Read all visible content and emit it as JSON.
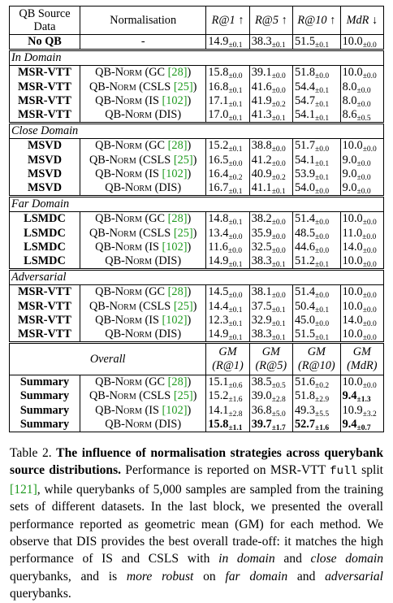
{
  "table": {
    "header": [
      "QB Source Data",
      "Normalisation",
      "R@1 ↑",
      "R@5 ↑",
      "R@10 ↑",
      "MdR ↓"
    ],
    "baseline": {
      "source": "No QB",
      "norm": [
        "-"
      ],
      "cells": [
        {
          "v": "14.9",
          "s": "±0.1"
        },
        {
          "v": "38.3",
          "s": "±0.1"
        },
        {
          "v": "51.5",
          "s": "±0.1"
        },
        {
          "v": "10.0",
          "s": "±0.0"
        }
      ]
    },
    "sections": [
      {
        "label": "In Domain",
        "rows": [
          {
            "source": "MSR-VTT",
            "norm": [
              {
                "sc": "QB-Norm"
              },
              " (GC ",
              {
                "cite": "[28]"
              },
              ")"
            ],
            "cells": [
              {
                "v": "15.8",
                "s": "±0.0"
              },
              {
                "v": "39.1",
                "s": "±0.0"
              },
              {
                "v": "51.8",
                "s": "±0.0"
              },
              {
                "v": "10.0",
                "s": "±0.0"
              }
            ]
          },
          {
            "source": "MSR-VTT",
            "norm": [
              {
                "sc": "QB-Norm"
              },
              " (CSLS ",
              {
                "cite": "[25]"
              },
              ")"
            ],
            "cells": [
              {
                "v": "16.8",
                "s": "±0.1"
              },
              {
                "v": "41.6",
                "s": "±0.0"
              },
              {
                "v": "54.4",
                "s": "±0.1"
              },
              {
                "v": "8.0",
                "s": "±0.0"
              }
            ]
          },
          {
            "source": "MSR-VTT",
            "norm": [
              {
                "sc": "QB-Norm"
              },
              " (IS ",
              {
                "cite": "[102]"
              },
              ")"
            ],
            "cells": [
              {
                "v": "17.1",
                "s": "±0.1"
              },
              {
                "v": "41.9",
                "s": "±0.2"
              },
              {
                "v": "54.7",
                "s": "±0.1"
              },
              {
                "v": "8.0",
                "s": "±0.0"
              }
            ]
          },
          {
            "source": "MSR-VTT",
            "norm": [
              {
                "sc": "QB-Norm"
              },
              " (DIS)"
            ],
            "cells": [
              {
                "v": "17.0",
                "s": "±0.1"
              },
              {
                "v": "41.3",
                "s": "±0.1"
              },
              {
                "v": "54.1",
                "s": "±0.1"
              },
              {
                "v": "8.6",
                "s": "±0.5"
              }
            ]
          }
        ]
      },
      {
        "label": "Close Domain",
        "rows": [
          {
            "source": "MSVD",
            "norm": [
              {
                "sc": "QB-Norm"
              },
              " (GC ",
              {
                "cite": "[28]"
              },
              ")"
            ],
            "cells": [
              {
                "v": "15.2",
                "s": "±0.1"
              },
              {
                "v": "38.8",
                "s": "±0.0"
              },
              {
                "v": "51.7",
                "s": "±0.0"
              },
              {
                "v": "10.0",
                "s": "±0.0"
              }
            ]
          },
          {
            "source": "MSVD",
            "norm": [
              {
                "sc": "QB-Norm"
              },
              " (CSLS ",
              {
                "cite": "[25]"
              },
              ")"
            ],
            "cells": [
              {
                "v": "16.5",
                "s": "±0.0"
              },
              {
                "v": "41.2",
                "s": "±0.0"
              },
              {
                "v": "54.1",
                "s": "±0.1"
              },
              {
                "v": "9.0",
                "s": "±0.0"
              }
            ]
          },
          {
            "source": "MSVD",
            "norm": [
              {
                "sc": "QB-Norm"
              },
              " (IS ",
              {
                "cite": "[102]"
              },
              ")"
            ],
            "cells": [
              {
                "v": "16.4",
                "s": "±0.2"
              },
              {
                "v": "40.9",
                "s": "±0.2"
              },
              {
                "v": "53.9",
                "s": "±0.1"
              },
              {
                "v": "9.0",
                "s": "±0.0"
              }
            ]
          },
          {
            "source": "MSVD",
            "norm": [
              {
                "sc": "QB-Norm"
              },
              " (DIS)"
            ],
            "cells": [
              {
                "v": "16.7",
                "s": "±0.1"
              },
              {
                "v": "41.1",
                "s": "±0.1"
              },
              {
                "v": "54.0",
                "s": "±0.0"
              },
              {
                "v": "9.0",
                "s": "±0.0"
              }
            ]
          }
        ]
      },
      {
        "label": "Far Domain",
        "rows": [
          {
            "source": "LSMDC",
            "norm": [
              {
                "sc": "QB-Norm"
              },
              " (GC ",
              {
                "cite": "[28]"
              },
              ")"
            ],
            "cells": [
              {
                "v": "14.8",
                "s": "±0.1"
              },
              {
                "v": "38.2",
                "s": "±0.0"
              },
              {
                "v": "51.4",
                "s": "±0.0"
              },
              {
                "v": "10.0",
                "s": "±0.0"
              }
            ]
          },
          {
            "source": "LSMDC",
            "norm": [
              {
                "sc": "QB-Norm"
              },
              " (CSLS ",
              {
                "cite": "[25]"
              },
              ")"
            ],
            "cells": [
              {
                "v": "13.4",
                "s": "±0.0"
              },
              {
                "v": "35.9",
                "s": "±0.0"
              },
              {
                "v": "48.5",
                "s": "±0.0"
              },
              {
                "v": "11.0",
                "s": "±0.0"
              }
            ]
          },
          {
            "source": "LSMDC",
            "norm": [
              {
                "sc": "QB-Norm"
              },
              " (IS ",
              {
                "cite": "[102]"
              },
              ")"
            ],
            "cells": [
              {
                "v": "11.6",
                "s": "±0.0"
              },
              {
                "v": "32.5",
                "s": "±0.0"
              },
              {
                "v": "44.6",
                "s": "±0.0"
              },
              {
                "v": "14.0",
                "s": "±0.0"
              }
            ]
          },
          {
            "source": "LSMDC",
            "norm": [
              {
                "sc": "QB-Norm"
              },
              " (DIS)"
            ],
            "cells": [
              {
                "v": "14.9",
                "s": "±0.1"
              },
              {
                "v": "38.3",
                "s": "±0.1"
              },
              {
                "v": "51.2",
                "s": "±0.1"
              },
              {
                "v": "10.0",
                "s": "±0.0"
              }
            ]
          }
        ]
      },
      {
        "label": "Adversarial",
        "rows": [
          {
            "source": "MSR-VTT",
            "norm": [
              {
                "sc": "QB-Norm"
              },
              " (GC ",
              {
                "cite": "[28]"
              },
              ")"
            ],
            "cells": [
              {
                "v": "14.5",
                "s": "±0.0"
              },
              {
                "v": "38.1",
                "s": "±0.0"
              },
              {
                "v": "51.4",
                "s": "±0.0"
              },
              {
                "v": "10.0",
                "s": "±0.0"
              }
            ]
          },
          {
            "source": "MSR-VTT",
            "norm": [
              {
                "sc": "QB-Norm"
              },
              " (CSLS ",
              {
                "cite": "[25]"
              },
              ")"
            ],
            "cells": [
              {
                "v": "14.4",
                "s": "±0.1"
              },
              {
                "v": "37.5",
                "s": "±0.1"
              },
              {
                "v": "50.4",
                "s": "±0.1"
              },
              {
                "v": "10.0",
                "s": "±0.0"
              }
            ]
          },
          {
            "source": "MSR-VTT",
            "norm": [
              {
                "sc": "QB-Norm"
              },
              " (IS ",
              {
                "cite": "[102]"
              },
              ")"
            ],
            "cells": [
              {
                "v": "12.3",
                "s": "±0.1"
              },
              {
                "v": "32.9",
                "s": "±0.1"
              },
              {
                "v": "45.0",
                "s": "±0.0"
              },
              {
                "v": "14.0",
                "s": "±0.0"
              }
            ]
          },
          {
            "source": "MSR-VTT",
            "norm": [
              {
                "sc": "QB-Norm"
              },
              " (DIS)"
            ],
            "cells": [
              {
                "v": "14.9",
                "s": "±0.1"
              },
              {
                "v": "38.3",
                "s": "±0.1"
              },
              {
                "v": "51.5",
                "s": "±0.1"
              },
              {
                "v": "10.0",
                "s": "±0.0"
              }
            ]
          }
        ]
      }
    ],
    "overall": {
      "label": "Overall",
      "headers": [
        [
          "GM",
          "(R@1)"
        ],
        [
          "GM",
          "(R@5)"
        ],
        [
          "GM",
          "(R@10)"
        ],
        [
          "GM",
          "(MdR)"
        ]
      ],
      "rows": [
        {
          "source": "Summary",
          "norm": [
            {
              "sc": "QB-Norm"
            },
            " (GC ",
            {
              "cite": "[28]"
            },
            ")"
          ],
          "cells": [
            {
              "v": "15.1",
              "s": "±0.6"
            },
            {
              "v": "38.5",
              "s": "±0.5"
            },
            {
              "v": "51.6",
              "s": "±0.2"
            },
            {
              "v": "10.0",
              "s": "±0.0"
            }
          ]
        },
        {
          "source": "Summary",
          "norm": [
            {
              "sc": "QB-Norm"
            },
            " (CSLS ",
            {
              "cite": "[25]"
            },
            ")"
          ],
          "cells": [
            {
              "v": "15.2",
              "s": "±1.6"
            },
            {
              "v": "39.0",
              "s": "±2.8"
            },
            {
              "v": "51.8",
              "s": "±2.9"
            },
            {
              "v": "9.4",
              "s": "±1.3",
              "b": true
            }
          ]
        },
        {
          "source": "Summary",
          "norm": [
            {
              "sc": "QB-Norm"
            },
            " (IS ",
            {
              "cite": "[102]"
            },
            ")"
          ],
          "cells": [
            {
              "v": "14.1",
              "s": "±2.8"
            },
            {
              "v": "36.8",
              "s": "±5.0"
            },
            {
              "v": "49.3",
              "s": "±5.5"
            },
            {
              "v": "10.9",
              "s": "±3.2"
            }
          ]
        },
        {
          "source": "Summary",
          "norm": [
            {
              "sc": "QB-Norm"
            },
            " (DIS)"
          ],
          "cells": [
            {
              "v": "15.8",
              "s": "±1.1",
              "b": true
            },
            {
              "v": "39.7",
              "s": "±1.7",
              "b": true
            },
            {
              "v": "52.7",
              "s": "±1.6",
              "b": true
            },
            {
              "v": "9.4",
              "s": "±0.7",
              "b": true
            }
          ]
        }
      ]
    }
  },
  "caption": [
    "Table 2. ",
    {
      "b": "The influence of normalisation strategies across querybank source distributions."
    },
    " Performance is reported on MSR-VTT ",
    {
      "tt": "full"
    },
    " split ",
    {
      "cite": "[121]"
    },
    ", while querybanks of 5,000 samples are sampled from the training sets of different datasets. In the last block, we presented the overall performance reported as geometric mean (GM) for each method. We observe that DIS provides the best overall trade-off: it matches the high performance of IS and CSLS with ",
    {
      "i": "in domain"
    },
    " and ",
    {
      "i": "close domain"
    },
    " querybanks, and is ",
    {
      "i": "more robust"
    },
    " on ",
    {
      "i": "far domain"
    },
    " and ",
    {
      "i": "adversarial"
    },
    " querybanks."
  ]
}
